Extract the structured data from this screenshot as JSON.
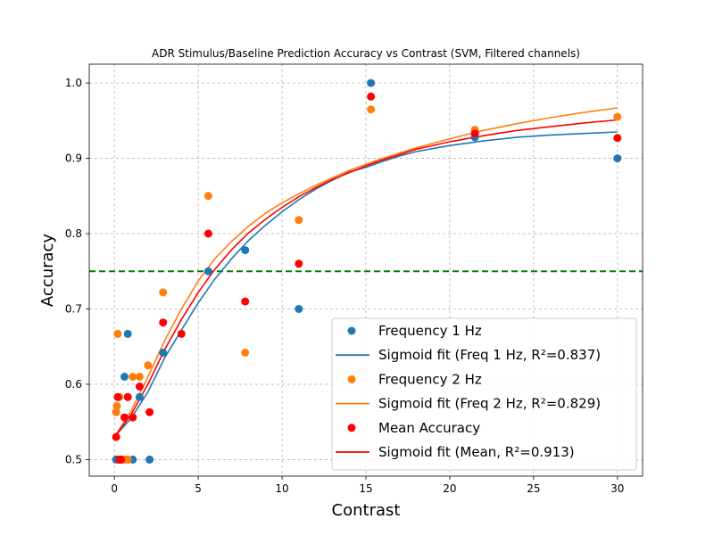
{
  "chart_data": {
    "type": "scatter",
    "title": "ADR Stimulus/Baseline Prediction Accuracy vs Contrast (SVM, Filtered channels)",
    "xlabel": "Contrast",
    "ylabel": "Accuracy",
    "xlim": [
      -1.5,
      31.5
    ],
    "ylim": [
      0.478,
      1.025
    ],
    "xticks": [
      0,
      5,
      10,
      15,
      20,
      25,
      30
    ],
    "xtick_labels": [
      "0",
      "5",
      "10",
      "15",
      "20",
      "25",
      "30"
    ],
    "yticks": [
      0.5,
      0.6,
      0.7,
      0.8,
      0.9,
      1.0
    ],
    "ytick_labels": [
      "0.5",
      "0.6",
      "0.7",
      "0.8",
      "0.9",
      "1.0"
    ],
    "grid": true,
    "legend_position": "bottom-right",
    "reference_line": {
      "y": 0.75,
      "color": "#008000",
      "style": "dashed"
    },
    "series": [
      {
        "name": "Frequency 1 Hz",
        "kind": "scatter",
        "color": "#1f77b4",
        "points": [
          [
            0.1,
            0.5
          ],
          [
            0.2,
            0.5
          ],
          [
            0.3,
            0.5
          ],
          [
            0.4,
            0.5
          ],
          [
            0.6,
            0.61
          ],
          [
            0.8,
            0.667
          ],
          [
            1.1,
            0.5
          ],
          [
            1.5,
            0.583
          ],
          [
            2.1,
            0.5
          ],
          [
            2.9,
            0.642
          ],
          [
            5.6,
            0.75
          ],
          [
            7.8,
            0.778
          ],
          [
            11.0,
            0.7
          ],
          [
            15.3,
            1.0
          ],
          [
            21.5,
            0.928
          ],
          [
            30.0,
            0.9
          ]
        ]
      },
      {
        "name": "Sigmoid fit (Freq 1 Hz, R²=0.837)",
        "kind": "line",
        "color": "#1f77b4",
        "points": [
          [
            0,
            0.53
          ],
          [
            1,
            0.555
          ],
          [
            2,
            0.59
          ],
          [
            3,
            0.635
          ],
          [
            4,
            0.672
          ],
          [
            5,
            0.708
          ],
          [
            6,
            0.74
          ],
          [
            7,
            0.767
          ],
          [
            8,
            0.791
          ],
          [
            9,
            0.811
          ],
          [
            10,
            0.829
          ],
          [
            11,
            0.845
          ],
          [
            12,
            0.859
          ],
          [
            13,
            0.871
          ],
          [
            14,
            0.882
          ],
          [
            15,
            0.888
          ],
          [
            16,
            0.896
          ],
          [
            17,
            0.903
          ],
          [
            18,
            0.909
          ],
          [
            20,
            0.917
          ],
          [
            22,
            0.923
          ],
          [
            24,
            0.928
          ],
          [
            26,
            0.931
          ],
          [
            28,
            0.933
          ],
          [
            30,
            0.935
          ]
        ]
      },
      {
        "name": "Frequency 2 Hz",
        "kind": "scatter",
        "color": "#ff7f0e",
        "points": [
          [
            0.1,
            0.563
          ],
          [
            0.15,
            0.571
          ],
          [
            0.2,
            0.667
          ],
          [
            0.3,
            0.583
          ],
          [
            0.4,
            0.5
          ],
          [
            0.6,
            0.5
          ],
          [
            0.8,
            0.5
          ],
          [
            1.1,
            0.61
          ],
          [
            1.5,
            0.61
          ],
          [
            2.0,
            0.625
          ],
          [
            2.9,
            0.722
          ],
          [
            5.6,
            0.85
          ],
          [
            7.8,
            0.642
          ],
          [
            11.0,
            0.818
          ],
          [
            15.3,
            0.965
          ],
          [
            21.5,
            0.938
          ],
          [
            30.0,
            0.955
          ]
        ]
      },
      {
        "name": "Sigmoid fit (Freq 2 Hz, R²=0.829)",
        "kind": "line",
        "color": "#ff7f0e",
        "points": [
          [
            0,
            0.53
          ],
          [
            1,
            0.565
          ],
          [
            2,
            0.61
          ],
          [
            3,
            0.658
          ],
          [
            4,
            0.7
          ],
          [
            5,
            0.737
          ],
          [
            6,
            0.767
          ],
          [
            7,
            0.79
          ],
          [
            8,
            0.81
          ],
          [
            9,
            0.827
          ],
          [
            10,
            0.841
          ],
          [
            11,
            0.853
          ],
          [
            12,
            0.864
          ],
          [
            13,
            0.874
          ],
          [
            14,
            0.884
          ],
          [
            15,
            0.892
          ],
          [
            16,
            0.9
          ],
          [
            17,
            0.907
          ],
          [
            18,
            0.914
          ],
          [
            20,
            0.926
          ],
          [
            22,
            0.937
          ],
          [
            24,
            0.946
          ],
          [
            26,
            0.954
          ],
          [
            28,
            0.961
          ],
          [
            30,
            0.967
          ]
        ]
      },
      {
        "name": "Mean Accuracy",
        "kind": "scatter",
        "color": "#ff0000",
        "points": [
          [
            0.1,
            0.53
          ],
          [
            0.2,
            0.583
          ],
          [
            0.3,
            0.5
          ],
          [
            0.4,
            0.5
          ],
          [
            0.6,
            0.556
          ],
          [
            0.8,
            0.583
          ],
          [
            1.1,
            0.556
          ],
          [
            1.5,
            0.597
          ],
          [
            2.1,
            0.563
          ],
          [
            2.9,
            0.682
          ],
          [
            4.0,
            0.667
          ],
          [
            5.6,
            0.8
          ],
          [
            7.8,
            0.71
          ],
          [
            11.0,
            0.76
          ],
          [
            15.3,
            0.982
          ],
          [
            21.5,
            0.933
          ],
          [
            30.0,
            0.927
          ]
        ]
      },
      {
        "name": "Sigmoid fit (Mean, R²=0.913)",
        "kind": "line",
        "color": "#ff0000",
        "points": [
          [
            0,
            0.53
          ],
          [
            1,
            0.56
          ],
          [
            2,
            0.6
          ],
          [
            3,
            0.646
          ],
          [
            4,
            0.686
          ],
          [
            5,
            0.722
          ],
          [
            6,
            0.753
          ],
          [
            7,
            0.779
          ],
          [
            8,
            0.801
          ],
          [
            9,
            0.819
          ],
          [
            10,
            0.835
          ],
          [
            11,
            0.849
          ],
          [
            12,
            0.861
          ],
          [
            13,
            0.872
          ],
          [
            14,
            0.881
          ],
          [
            15,
            0.89
          ],
          [
            16,
            0.898
          ],
          [
            17,
            0.905
          ],
          [
            18,
            0.912
          ],
          [
            20,
            0.922
          ],
          [
            22,
            0.93
          ],
          [
            24,
            0.937
          ],
          [
            26,
            0.942
          ],
          [
            28,
            0.947
          ],
          [
            30,
            0.951
          ]
        ]
      }
    ]
  }
}
